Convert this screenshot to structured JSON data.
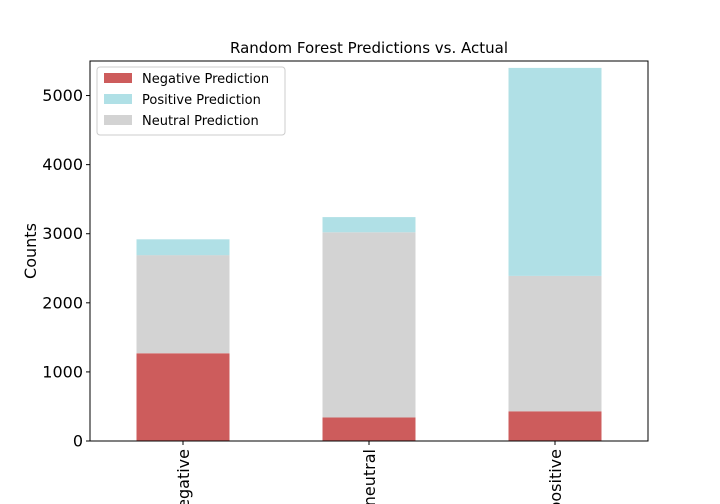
{
  "chart_data": {
    "type": "bar",
    "stacked": true,
    "title": "Random Forest Predictions vs. Actual",
    "xlabel": "",
    "ylabel": "Counts",
    "categories": [
      "negative",
      "neutral",
      "positive"
    ],
    "ylim": [
      0,
      5500
    ],
    "yticks": [
      0,
      1000,
      2000,
      3000,
      4000,
      5000
    ],
    "grid": false,
    "legend_position": "top-left",
    "series": [
      {
        "name": "Negative Prediction",
        "color": "#cd5c5c",
        "values": [
          1270,
          340,
          430
        ]
      },
      {
        "name": "Neutral Prediction",
        "color": "#d3d3d3",
        "values": [
          1420,
          2680,
          1960
        ]
      },
      {
        "name": "Positive Prediction",
        "color": "#b0e0e6",
        "values": [
          230,
          220,
          3010
        ]
      }
    ],
    "legend_order": [
      "Negative Prediction",
      "Positive Prediction",
      "Neutral Prediction"
    ]
  }
}
